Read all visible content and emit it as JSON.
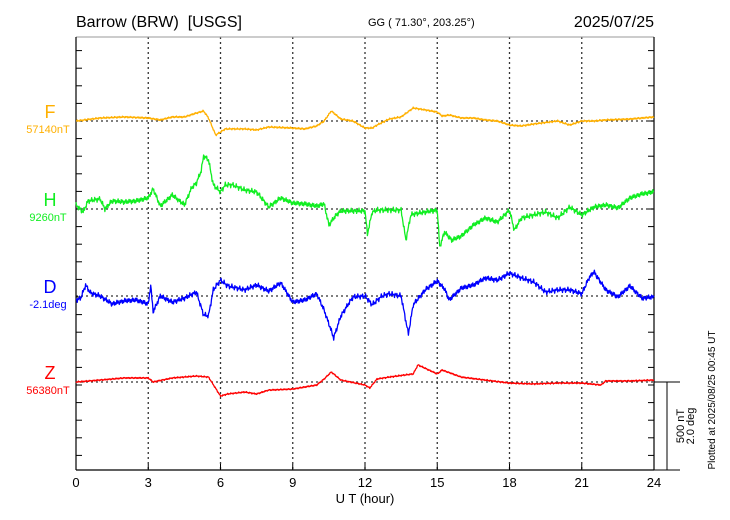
{
  "chart_data": {
    "type": "line",
    "title": "Barrow (BRW)  [USGS]",
    "subtitle": "GG ( 71.30°, 203.25°)",
    "date": "2025/07/25",
    "xlabel": "U T (hour)",
    "xlim": [
      0,
      24
    ],
    "xticks": [
      "0",
      "3",
      "6",
      "9",
      "12",
      "15",
      "18",
      "21",
      "24"
    ],
    "grid": true,
    "scale_bar": {
      "nT_label": "500 nT",
      "deg_label": "2.0 deg",
      "nT": 500,
      "deg": 2.0
    },
    "footer": "Plotted at 2025/08/25 00:45 UT",
    "series": [
      {
        "name": "F",
        "baseline_label": "57140nT",
        "unit": "nT",
        "color": "#ffb000",
        "points": [
          [
            0,
            0
          ],
          [
            1,
            17
          ],
          [
            2,
            23
          ],
          [
            3,
            17
          ],
          [
            3.5,
            6
          ],
          [
            4,
            23
          ],
          [
            4.5,
            23
          ],
          [
            5,
            45
          ],
          [
            5.3,
            57
          ],
          [
            5.5,
            17
          ],
          [
            5.8,
            -80
          ],
          [
            6.2,
            -45
          ],
          [
            7,
            -45
          ],
          [
            7.5,
            -51
          ],
          [
            8,
            -34
          ],
          [
            9,
            -40
          ],
          [
            9.5,
            -45
          ],
          [
            10,
            -28
          ],
          [
            10.3,
            0
          ],
          [
            10.6,
            57
          ],
          [
            11,
            11
          ],
          [
            11.5,
            0
          ],
          [
            12,
            -40
          ],
          [
            12.3,
            -40
          ],
          [
            12.5,
            -23
          ],
          [
            13,
            11
          ],
          [
            13.5,
            23
          ],
          [
            14,
            74
          ],
          [
            14.5,
            63
          ],
          [
            15,
            51
          ],
          [
            15.2,
            28
          ],
          [
            15.5,
            34
          ],
          [
            16,
            17
          ],
          [
            16.5,
            17
          ],
          [
            17,
            6
          ],
          [
            17.5,
            0
          ],
          [
            18,
            -23
          ],
          [
            18.5,
            -28
          ],
          [
            19,
            -17
          ],
          [
            20,
            0
          ],
          [
            20.5,
            -23
          ],
          [
            21,
            0
          ],
          [
            21.5,
            0
          ],
          [
            22,
            6
          ],
          [
            23,
            11
          ],
          [
            23.5,
            17
          ],
          [
            24,
            23
          ]
        ]
      },
      {
        "name": "H",
        "baseline_label": "9260nT",
        "unit": "nT",
        "color": "#11ee22",
        "points": [
          [
            0,
            23
          ],
          [
            0.3,
            -17
          ],
          [
            0.5,
            46
          ],
          [
            1,
            57
          ],
          [
            1.2,
            0
          ],
          [
            1.5,
            46
          ],
          [
            2,
            40
          ],
          [
            2.5,
            46
          ],
          [
            3,
            63
          ],
          [
            3.2,
            114
          ],
          [
            3.5,
            17
          ],
          [
            4,
            80
          ],
          [
            4.5,
            23
          ],
          [
            4.8,
            120
          ],
          [
            5,
            148
          ],
          [
            5.2,
            217
          ],
          [
            5.3,
            302
          ],
          [
            5.5,
            279
          ],
          [
            5.7,
            137
          ],
          [
            6,
            97
          ],
          [
            6.2,
            137
          ],
          [
            6.5,
            137
          ],
          [
            7,
            108
          ],
          [
            7.5,
            97
          ],
          [
            8,
            11
          ],
          [
            8.5,
            63
          ],
          [
            9,
            34
          ],
          [
            9.5,
            29
          ],
          [
            10,
            17
          ],
          [
            10.3,
            29
          ],
          [
            10.5,
            -91
          ],
          [
            10.8,
            -34
          ],
          [
            11,
            -11
          ],
          [
            11.5,
            -11
          ],
          [
            12,
            -11
          ],
          [
            12.1,
            -143
          ],
          [
            12.3,
            -17
          ],
          [
            12.5,
            -6
          ],
          [
            13,
            -6
          ],
          [
            13.5,
            -6
          ],
          [
            13.7,
            -177
          ],
          [
            13.9,
            -34
          ],
          [
            14,
            -29
          ],
          [
            14.5,
            -17
          ],
          [
            15,
            -6
          ],
          [
            15.1,
            -217
          ],
          [
            15.3,
            -131
          ],
          [
            15.6,
            -177
          ],
          [
            16,
            -154
          ],
          [
            16.5,
            -91
          ],
          [
            17,
            -51
          ],
          [
            17.5,
            -74
          ],
          [
            18,
            -6
          ],
          [
            18.2,
            -120
          ],
          [
            18.5,
            -51
          ],
          [
            19,
            -34
          ],
          [
            19.5,
            -17
          ],
          [
            20,
            -51
          ],
          [
            20.5,
            11
          ],
          [
            21,
            -34
          ],
          [
            21.5,
            11
          ],
          [
            22,
            23
          ],
          [
            22.5,
            6
          ],
          [
            23,
            63
          ],
          [
            23.5,
            86
          ],
          [
            24,
            97
          ]
        ]
      },
      {
        "name": "D",
        "baseline_label": "-2.1deg",
        "unit": "deg",
        "color": "#0000ff",
        "points": [
          [
            0,
            -0.09
          ],
          [
            0.2,
            -0.05
          ],
          [
            0.4,
            0.25
          ],
          [
            0.6,
            0.07
          ],
          [
            1,
            0
          ],
          [
            1.5,
            -0.18
          ],
          [
            2,
            -0.11
          ],
          [
            2.5,
            -0.09
          ],
          [
            3,
            -0.18
          ],
          [
            3.1,
            0.25
          ],
          [
            3.2,
            -0.36
          ],
          [
            3.5,
            0
          ],
          [
            4,
            -0.14
          ],
          [
            4.5,
            -0.05
          ],
          [
            5,
            0.09
          ],
          [
            5.3,
            -0.43
          ],
          [
            5.5,
            -0.45
          ],
          [
            5.7,
            0.14
          ],
          [
            6,
            0.36
          ],
          [
            6.3,
            0.23
          ],
          [
            7,
            0.14
          ],
          [
            7.5,
            0.25
          ],
          [
            8,
            0.11
          ],
          [
            8.5,
            0.3
          ],
          [
            9,
            -0.14
          ],
          [
            9.5,
            -0.09
          ],
          [
            10,
            0.05
          ],
          [
            10.3,
            -0.32
          ],
          [
            10.7,
            -0.95
          ],
          [
            11,
            -0.45
          ],
          [
            11.5,
            -0.02
          ],
          [
            12,
            0
          ],
          [
            12.3,
            -0.2
          ],
          [
            12.7,
            0
          ],
          [
            13,
            0.05
          ],
          [
            13.5,
            0
          ],
          [
            13.8,
            -0.86
          ],
          [
            14,
            -0.2
          ],
          [
            14.5,
            0.14
          ],
          [
            15,
            0.34
          ],
          [
            15.3,
            0.16
          ],
          [
            15.5,
            -0.09
          ],
          [
            16,
            0.18
          ],
          [
            16.5,
            0.25
          ],
          [
            17,
            0.41
          ],
          [
            17.5,
            0.36
          ],
          [
            18,
            0.52
          ],
          [
            18.5,
            0.41
          ],
          [
            19,
            0.32
          ],
          [
            19.5,
            0.09
          ],
          [
            20,
            0.14
          ],
          [
            20.5,
            0.14
          ],
          [
            21,
            0.05
          ],
          [
            21.3,
            0.41
          ],
          [
            21.5,
            0.55
          ],
          [
            22,
            0.14
          ],
          [
            22.5,
            -0.02
          ],
          [
            23,
            0.23
          ],
          [
            23.5,
            -0.05
          ],
          [
            24,
            -0.02
          ]
        ]
      },
      {
        "name": "Z",
        "baseline_label": "56380nT",
        "unit": "nT",
        "color": "#ff0000",
        "points": [
          [
            0,
            0
          ],
          [
            1,
            11
          ],
          [
            2,
            23
          ],
          [
            3,
            23
          ],
          [
            3.2,
            0
          ],
          [
            4,
            23
          ],
          [
            5,
            34
          ],
          [
            5.5,
            28
          ],
          [
            6,
            -80
          ],
          [
            6.3,
            -68
          ],
          [
            7,
            -57
          ],
          [
            7.5,
            -68
          ],
          [
            8,
            -46
          ],
          [
            9,
            -40
          ],
          [
            10,
            -17
          ],
          [
            10.3,
            17
          ],
          [
            10.6,
            57
          ],
          [
            11,
            11
          ],
          [
            12,
            -17
          ],
          [
            12.2,
            -34
          ],
          [
            12.5,
            17
          ],
          [
            13,
            28
          ],
          [
            14,
            46
          ],
          [
            14.2,
            97
          ],
          [
            15,
            46
          ],
          [
            15.2,
            68
          ],
          [
            16,
            28
          ],
          [
            17,
            11
          ],
          [
            18,
            -6
          ],
          [
            19,
            -11
          ],
          [
            20,
            -6
          ],
          [
            21,
            -6
          ],
          [
            21.8,
            -17
          ],
          [
            22,
            6
          ],
          [
            23,
            6
          ],
          [
            24,
            11
          ]
        ]
      }
    ]
  }
}
